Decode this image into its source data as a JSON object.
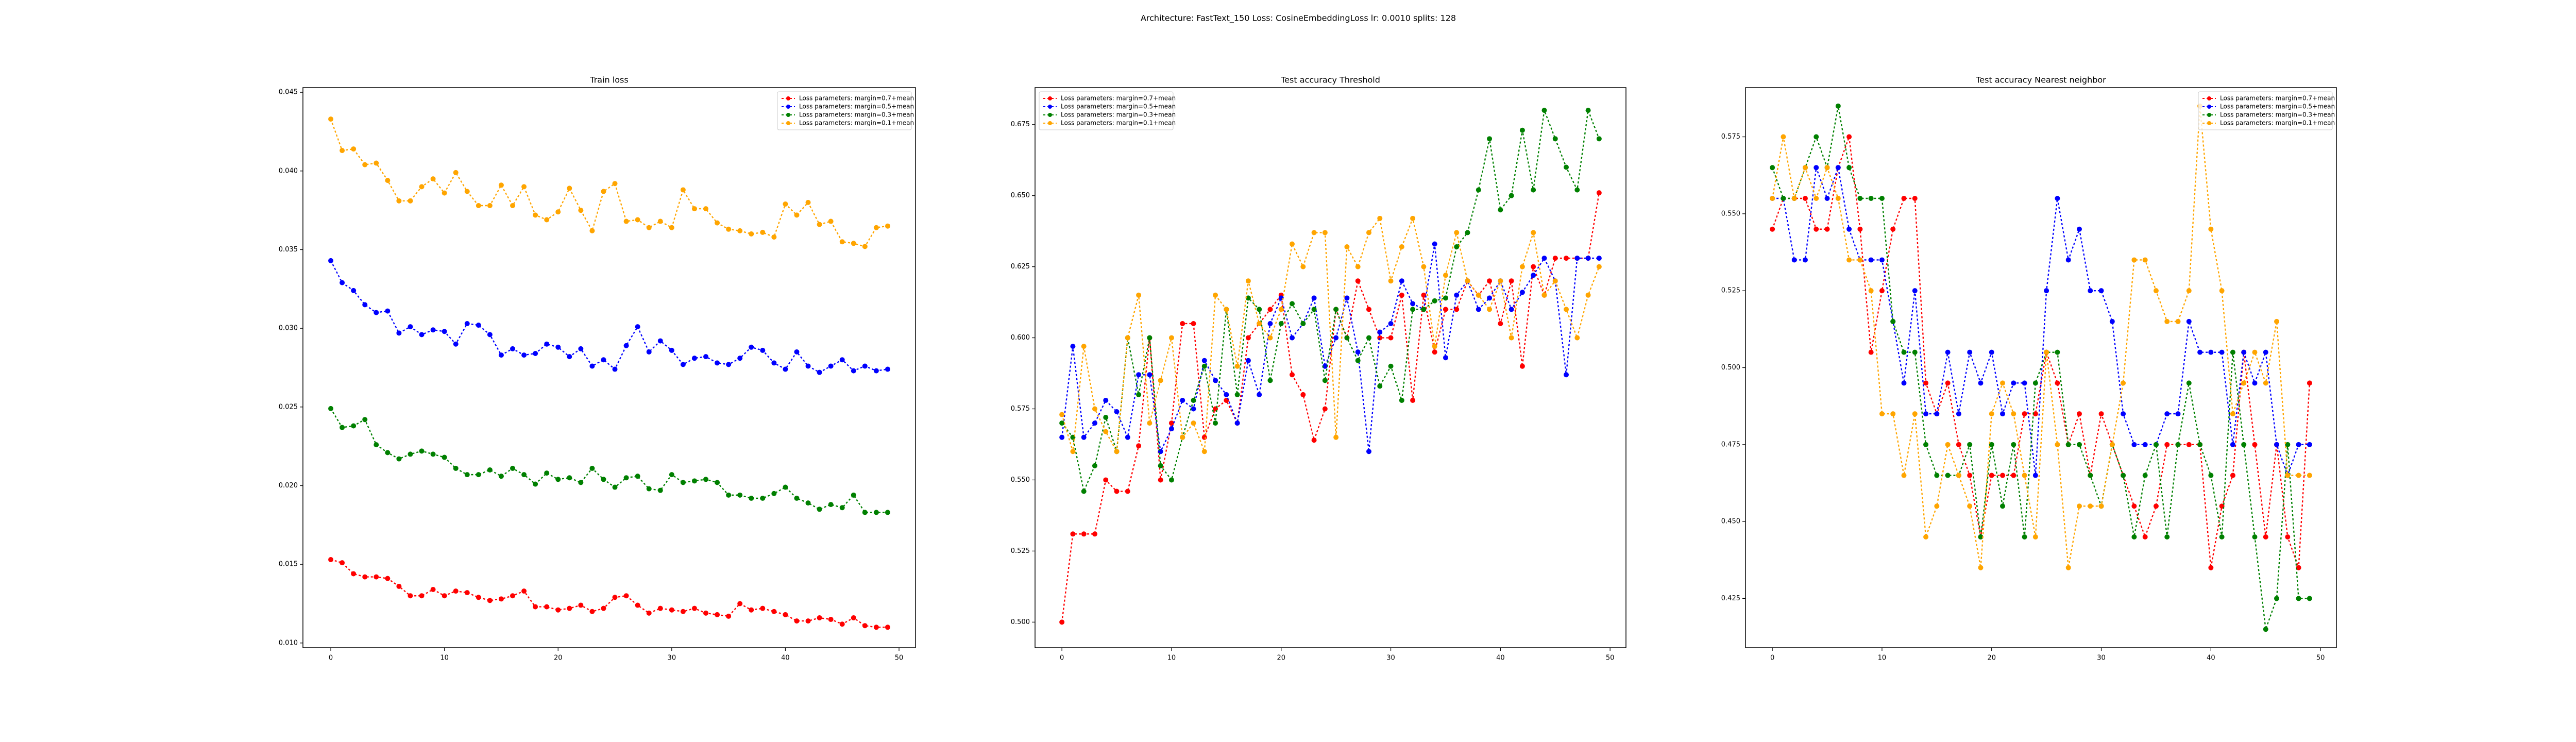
{
  "title": "Architecture: FastText_150 Loss: CosineEmbeddingLoss lr: 0.0010 splits: 128",
  "chart_data": [
    {
      "type": "line",
      "title": "Train loss",
      "x": [
        0,
        1,
        2,
        3,
        4,
        5,
        6,
        7,
        8,
        9,
        10,
        11,
        12,
        13,
        14,
        15,
        16,
        17,
        18,
        19,
        20,
        21,
        22,
        23,
        24,
        25,
        26,
        27,
        28,
        29,
        30,
        31,
        32,
        33,
        34,
        35,
        36,
        37,
        38,
        39,
        40,
        41,
        42,
        43,
        44,
        45,
        46,
        47,
        48,
        49
      ],
      "xlim": [
        -2.45,
        51.45
      ],
      "xticks": [
        0,
        10,
        20,
        30,
        40,
        50
      ],
      "ylim": [
        0.0097,
        0.0453
      ],
      "yticks": [
        {
          "value": 0.01,
          "label": "0.010"
        },
        {
          "value": 0.015,
          "label": "0.015"
        },
        {
          "value": 0.02,
          "label": "0.020"
        },
        {
          "value": 0.025,
          "label": "0.025"
        },
        {
          "value": 0.03,
          "label": "0.030"
        },
        {
          "value": 0.035,
          "label": "0.035"
        },
        {
          "value": 0.04,
          "label": "0.040"
        },
        {
          "value": 0.045,
          "label": "0.045"
        }
      ],
      "legend": "upper right",
      "series": [
        {
          "name": "Loss parameters: margin=0.7+mean",
          "color": "#ff0000",
          "values": [
            0.0153,
            0.0151,
            0.0144,
            0.0142,
            0.0142,
            0.0141,
            0.0136,
            0.013,
            0.013,
            0.0134,
            0.013,
            0.0133,
            0.0132,
            0.0129,
            0.0127,
            0.0128,
            0.013,
            0.0133,
            0.0123,
            0.0123,
            0.0121,
            0.0122,
            0.0124,
            0.012,
            0.0122,
            0.0129,
            0.013,
            0.0124,
            0.0119,
            0.0122,
            0.0121,
            0.012,
            0.0122,
            0.0119,
            0.0118,
            0.0117,
            0.0125,
            0.0121,
            0.0122,
            0.012,
            0.0118,
            0.0114,
            0.0114,
            0.0116,
            0.0115,
            0.0112,
            0.0116,
            0.0111,
            0.011,
            0.011
          ]
        },
        {
          "name": "Loss parameters: margin=0.5+mean",
          "color": "#0000ff",
          "values": [
            0.0343,
            0.0329,
            0.0324,
            0.0315,
            0.031,
            0.0311,
            0.0297,
            0.0301,
            0.0296,
            0.0299,
            0.0298,
            0.029,
            0.0303,
            0.0302,
            0.0296,
            0.0283,
            0.0287,
            0.0283,
            0.0284,
            0.029,
            0.0288,
            0.0282,
            0.0287,
            0.0276,
            0.028,
            0.0274,
            0.0289,
            0.0301,
            0.0285,
            0.0292,
            0.0286,
            0.0277,
            0.0281,
            0.0282,
            0.0278,
            0.0277,
            0.0281,
            0.0288,
            0.0286,
            0.0278,
            0.0274,
            0.0285,
            0.0276,
            0.0272,
            0.0276,
            0.028,
            0.0273,
            0.0276,
            0.0273,
            0.0274
          ]
        },
        {
          "name": "Loss parameters: margin=0.3+mean",
          "color": "#008000",
          "values": [
            0.0249,
            0.0237,
            0.0238,
            0.0242,
            0.0226,
            0.0221,
            0.0217,
            0.022,
            0.0222,
            0.022,
            0.0218,
            0.0211,
            0.0207,
            0.0207,
            0.021,
            0.0206,
            0.0211,
            0.0207,
            0.0201,
            0.0208,
            0.0204,
            0.0205,
            0.0202,
            0.0211,
            0.0204,
            0.0199,
            0.0205,
            0.0206,
            0.0198,
            0.0197,
            0.0207,
            0.0202,
            0.0203,
            0.0204,
            0.0202,
            0.0194,
            0.0194,
            0.0192,
            0.0192,
            0.0195,
            0.0199,
            0.0192,
            0.0189,
            0.0185,
            0.0188,
            0.0186,
            0.0194,
            0.0183,
            0.0183,
            0.0183
          ]
        },
        {
          "name": "Loss parameters: margin=0.1+mean",
          "color": "#ffa500",
          "values": [
            0.0433,
            0.0413,
            0.0414,
            0.0404,
            0.0405,
            0.0394,
            0.0381,
            0.0381,
            0.039,
            0.0395,
            0.0386,
            0.0399,
            0.0387,
            0.0378,
            0.0378,
            0.0391,
            0.0378,
            0.039,
            0.0372,
            0.0369,
            0.0374,
            0.0389,
            0.0375,
            0.0362,
            0.0387,
            0.0392,
            0.0368,
            0.0369,
            0.0364,
            0.0368,
            0.0364,
            0.0388,
            0.0376,
            0.0376,
            0.0367,
            0.0363,
            0.0362,
            0.036,
            0.0361,
            0.0358,
            0.0379,
            0.0372,
            0.038,
            0.0366,
            0.0368,
            0.0355,
            0.0354,
            0.0352,
            0.0364,
            0.0365
          ]
        }
      ]
    },
    {
      "type": "line",
      "title": "Test accuracy Threshold",
      "x": [
        0,
        1,
        2,
        3,
        4,
        5,
        6,
        7,
        8,
        9,
        10,
        11,
        12,
        13,
        14,
        15,
        16,
        17,
        18,
        19,
        20,
        21,
        22,
        23,
        24,
        25,
        26,
        27,
        28,
        29,
        30,
        31,
        32,
        33,
        34,
        35,
        36,
        37,
        38,
        39,
        40,
        41,
        42,
        43,
        44,
        45,
        46,
        47,
        48,
        49
      ],
      "xlim": [
        -2.45,
        51.45
      ],
      "xticks": [
        0,
        10,
        20,
        30,
        40,
        50
      ],
      "ylim": [
        0.491,
        0.688
      ],
      "yticks": [
        {
          "value": 0.5,
          "label": "0.500"
        },
        {
          "value": 0.525,
          "label": "0.525"
        },
        {
          "value": 0.55,
          "label": "0.550"
        },
        {
          "value": 0.575,
          "label": "0.575"
        },
        {
          "value": 0.6,
          "label": "0.600"
        },
        {
          "value": 0.625,
          "label": "0.625"
        },
        {
          "value": 0.65,
          "label": "0.650"
        },
        {
          "value": 0.675,
          "label": "0.675"
        }
      ],
      "legend": "upper left",
      "series": [
        {
          "name": "Loss parameters: margin=0.7+mean",
          "color": "#ff0000",
          "values": [
            0.5,
            0.531,
            0.531,
            0.531,
            0.55,
            0.546,
            0.546,
            0.562,
            0.6,
            0.55,
            0.57,
            0.605,
            0.605,
            0.565,
            0.575,
            0.578,
            0.57,
            0.6,
            0.605,
            0.61,
            0.615,
            0.587,
            0.58,
            0.564,
            0.575,
            0.61,
            0.6,
            0.62,
            0.61,
            0.6,
            0.6,
            0.615,
            0.578,
            0.615,
            0.595,
            0.61,
            0.61,
            0.62,
            0.615,
            0.62,
            0.605,
            0.62,
            0.59,
            0.625,
            0.615,
            0.628,
            0.628,
            0.628,
            0.628,
            0.651
          ]
        },
        {
          "name": "Loss parameters: margin=0.5+mean",
          "color": "#0000ff",
          "values": [
            0.565,
            0.597,
            0.565,
            0.57,
            0.578,
            0.574,
            0.565,
            0.587,
            0.587,
            0.56,
            0.568,
            0.578,
            0.575,
            0.592,
            0.585,
            0.58,
            0.57,
            0.592,
            0.58,
            0.605,
            0.614,
            0.6,
            0.605,
            0.614,
            0.59,
            0.6,
            0.614,
            0.595,
            0.56,
            0.602,
            0.605,
            0.62,
            0.612,
            0.61,
            0.633,
            0.593,
            0.615,
            0.62,
            0.61,
            0.614,
            0.62,
            0.61,
            0.616,
            0.622,
            0.628,
            0.62,
            0.587,
            0.628,
            0.628,
            0.628
          ]
        },
        {
          "name": "Loss parameters: margin=0.3+mean",
          "color": "#008000",
          "values": [
            0.57,
            0.565,
            0.546,
            0.555,
            0.572,
            0.56,
            0.6,
            0.58,
            0.6,
            0.555,
            0.55,
            0.565,
            0.578,
            0.59,
            0.57,
            0.61,
            0.58,
            0.614,
            0.61,
            0.585,
            0.605,
            0.612,
            0.605,
            0.61,
            0.585,
            0.61,
            0.6,
            0.592,
            0.6,
            0.583,
            0.59,
            0.578,
            0.61,
            0.61,
            0.613,
            0.614,
            0.632,
            0.637,
            0.652,
            0.67,
            0.645,
            0.65,
            0.673,
            0.652,
            0.68,
            0.67,
            0.66,
            0.652,
            0.68,
            0.67
          ]
        },
        {
          "name": "Loss parameters: margin=0.1+mean",
          "color": "#ffa500",
          "values": [
            0.573,
            0.56,
            0.597,
            0.575,
            0.567,
            0.56,
            0.6,
            0.615,
            0.57,
            0.585,
            0.6,
            0.565,
            0.57,
            0.56,
            0.615,
            0.61,
            0.59,
            0.62,
            0.605,
            0.6,
            0.61,
            0.633,
            0.625,
            0.637,
            0.637,
            0.565,
            0.632,
            0.625,
            0.637,
            0.642,
            0.62,
            0.632,
            0.642,
            0.625,
            0.597,
            0.622,
            0.637,
            0.62,
            0.615,
            0.61,
            0.62,
            0.6,
            0.625,
            0.637,
            0.615,
            0.62,
            0.61,
            0.6,
            0.615,
            0.625
          ]
        }
      ]
    },
    {
      "type": "line",
      "title": "Test accuracy Nearest neighbor",
      "x": [
        0,
        1,
        2,
        3,
        4,
        5,
        6,
        7,
        8,
        9,
        10,
        11,
        12,
        13,
        14,
        15,
        16,
        17,
        18,
        19,
        20,
        21,
        22,
        23,
        24,
        25,
        26,
        27,
        28,
        29,
        30,
        31,
        32,
        33,
        34,
        35,
        36,
        37,
        38,
        39,
        40,
        41,
        42,
        43,
        44,
        45,
        46,
        47,
        48,
        49
      ],
      "xlim": [
        -2.45,
        51.45
      ],
      "xticks": [
        0,
        10,
        20,
        30,
        40,
        50
      ],
      "ylim": [
        0.409,
        0.591
      ],
      "yticks": [
        {
          "value": 0.425,
          "label": "0.425"
        },
        {
          "value": 0.45,
          "label": "0.450"
        },
        {
          "value": 0.475,
          "label": "0.475"
        },
        {
          "value": 0.5,
          "label": "0.500"
        },
        {
          "value": 0.525,
          "label": "0.525"
        },
        {
          "value": 0.55,
          "label": "0.550"
        },
        {
          "value": 0.575,
          "label": "0.575"
        }
      ],
      "legend": "upper right",
      "series": [
        {
          "name": "Loss parameters: margin=0.7+mean",
          "color": "#ff0000",
          "values": [
            0.545,
            0.555,
            0.555,
            0.555,
            0.545,
            0.545,
            0.565,
            0.575,
            0.545,
            0.505,
            0.525,
            0.545,
            0.555,
            0.555,
            0.495,
            0.485,
            0.495,
            0.475,
            0.465,
            0.445,
            0.465,
            0.465,
            0.465,
            0.485,
            0.485,
            0.505,
            0.495,
            0.475,
            0.485,
            0.465,
            0.485,
            0.475,
            0.465,
            0.455,
            0.445,
            0.455,
            0.475,
            0.475,
            0.475,
            0.475,
            0.435,
            0.455,
            0.465,
            0.505,
            0.475,
            0.445,
            0.475,
            0.445,
            0.435,
            0.495
          ]
        },
        {
          "name": "Loss parameters: margin=0.5+mean",
          "color": "#0000ff",
          "values": [
            0.555,
            0.555,
            0.535,
            0.535,
            0.565,
            0.555,
            0.565,
            0.545,
            0.535,
            0.535,
            0.535,
            0.515,
            0.495,
            0.525,
            0.485,
            0.485,
            0.505,
            0.485,
            0.505,
            0.495,
            0.505,
            0.485,
            0.495,
            0.495,
            0.465,
            0.525,
            0.555,
            0.535,
            0.545,
            0.525,
            0.525,
            0.515,
            0.485,
            0.475,
            0.475,
            0.475,
            0.485,
            0.485,
            0.515,
            0.505,
            0.505,
            0.505,
            0.475,
            0.505,
            0.495,
            0.505,
            0.475,
            0.465,
            0.475,
            0.475
          ]
        },
        {
          "name": "Loss parameters: margin=0.3+mean",
          "color": "#008000",
          "values": [
            0.565,
            0.555,
            0.555,
            0.565,
            0.575,
            0.565,
            0.585,
            0.565,
            0.555,
            0.555,
            0.555,
            0.515,
            0.505,
            0.505,
            0.475,
            0.465,
            0.465,
            0.465,
            0.475,
            0.445,
            0.475,
            0.455,
            0.475,
            0.445,
            0.495,
            0.505,
            0.505,
            0.475,
            0.475,
            0.465,
            0.455,
            0.475,
            0.465,
            0.445,
            0.465,
            0.475,
            0.445,
            0.475,
            0.495,
            0.475,
            0.465,
            0.445,
            0.505,
            0.475,
            0.445,
            0.415,
            0.425,
            0.475,
            0.425,
            0.425
          ]
        },
        {
          "name": "Loss parameters: margin=0.1+mean",
          "color": "#ffa500",
          "values": [
            0.555,
            0.575,
            0.555,
            0.565,
            0.555,
            0.565,
            0.555,
            0.535,
            0.535,
            0.525,
            0.485,
            0.485,
            0.465,
            0.485,
            0.445,
            0.455,
            0.475,
            0.465,
            0.455,
            0.435,
            0.485,
            0.495,
            0.485,
            0.465,
            0.445,
            0.505,
            0.475,
            0.435,
            0.455,
            0.455,
            0.455,
            0.475,
            0.495,
            0.535,
            0.535,
            0.525,
            0.515,
            0.515,
            0.525,
            0.585,
            0.545,
            0.525,
            0.485,
            0.495,
            0.505,
            0.495,
            0.515,
            0.465,
            0.465,
            0.465
          ]
        }
      ]
    }
  ]
}
